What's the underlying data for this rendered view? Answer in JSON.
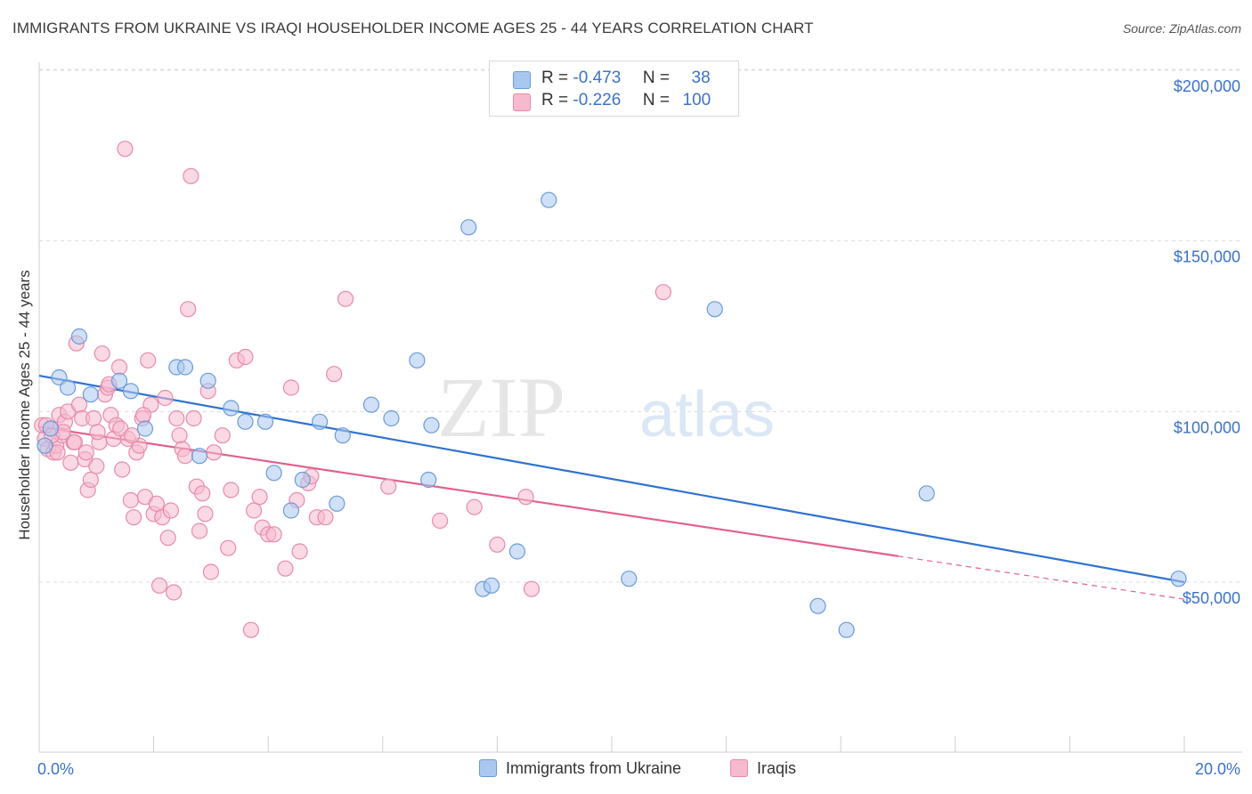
{
  "title": "IMMIGRANTS FROM UKRAINE VS IRAQI HOUSEHOLDER INCOME AGES 25 - 44 YEARS CORRELATION CHART",
  "source": "Source: ZipAtlas.com",
  "watermark": {
    "zip": "ZIP",
    "atlas": "atlas"
  },
  "legend": {
    "r_label": "R =",
    "n_label": "N =",
    "rows": [
      {
        "r": "-0.473",
        "n": "38",
        "color": "#a9c8f0",
        "border": "#6a9ad8"
      },
      {
        "r": "-0.226",
        "n": "100",
        "color": "#f7b9cd",
        "border": "#e68aa9"
      }
    ]
  },
  "bottom_legend": [
    "Immigrants from Ukraine",
    "Iraqis"
  ],
  "chart_data": {
    "type": "scatter",
    "title": "IMMIGRANTS FROM UKRAINE VS IRAQI HOUSEHOLDER INCOME AGES 25 - 44 YEARS CORRELATION CHART",
    "xlabel": "",
    "ylabel": "Householder Income Ages 25 - 44 years",
    "xlim": [
      0,
      20
    ],
    "ylim": [
      0,
      210000
    ],
    "x_tick_labels": [
      "0.0%",
      "20.0%"
    ],
    "y_ticks": [
      50000,
      100000,
      150000,
      200000
    ],
    "y_tick_labels": [
      "$50,000",
      "$100,000",
      "$150,000",
      "$200,000"
    ],
    "grid": true,
    "series": [
      {
        "name": "Immigrants from Ukraine",
        "color": "#6a9ad8",
        "fill": "#a9c8f0",
        "line_color": "#2f72d0",
        "trend": {
          "x0": 0,
          "y0": 110500,
          "x1": 20,
          "y1": 50000,
          "solid_until": 20
        },
        "points": [
          [
            0.1,
            90000
          ],
          [
            0.2,
            95000
          ],
          [
            0.35,
            110000
          ],
          [
            0.7,
            122000
          ],
          [
            0.5,
            107000
          ],
          [
            0.9,
            105000
          ],
          [
            1.4,
            109000
          ],
          [
            1.85,
            95000
          ],
          [
            2.4,
            113000
          ],
          [
            1.6,
            106000
          ],
          [
            2.95,
            109000
          ],
          [
            2.8,
            87000
          ],
          [
            3.35,
            101000
          ],
          [
            3.6,
            97000
          ],
          [
            3.95,
            97000
          ],
          [
            4.1,
            82000
          ],
          [
            4.4,
            71000
          ],
          [
            4.6,
            80000
          ],
          [
            4.9,
            97000
          ],
          [
            5.2,
            73000
          ],
          [
            5.3,
            93000
          ],
          [
            5.8,
            102000
          ],
          [
            6.15,
            98000
          ],
          [
            6.6,
            115000
          ],
          [
            6.85,
            96000
          ],
          [
            6.8,
            80000
          ],
          [
            7.5,
            154000
          ],
          [
            7.75,
            48000
          ],
          [
            7.9,
            49000
          ],
          [
            8.35,
            59000
          ],
          [
            8.9,
            162000
          ],
          [
            10.3,
            51000
          ],
          [
            11.8,
            130000
          ],
          [
            13.6,
            43000
          ],
          [
            14.1,
            36000
          ],
          [
            15.5,
            76000
          ],
          [
            19.9,
            51000
          ],
          [
            2.55,
            113000
          ]
        ]
      },
      {
        "name": "Iraqis",
        "color": "#e68aa9",
        "fill": "#f7b9cd",
        "line_color": "#e0608e",
        "trend": {
          "x0": 0,
          "y0": 95500,
          "x1": 20,
          "y1": 45000,
          "solid_until": 15
        },
        "points": [
          [
            0.05,
            96000
          ],
          [
            0.1,
            92000
          ],
          [
            0.15,
            89000
          ],
          [
            0.2,
            95000
          ],
          [
            0.25,
            88000
          ],
          [
            0.3,
            90000
          ],
          [
            0.35,
            99000
          ],
          [
            0.4,
            93000
          ],
          [
            0.45,
            97000
          ],
          [
            0.5,
            100000
          ],
          [
            0.55,
            85000
          ],
          [
            0.6,
            91000
          ],
          [
            0.65,
            120000
          ],
          [
            0.7,
            102000
          ],
          [
            0.75,
            98000
          ],
          [
            0.8,
            86000
          ],
          [
            0.85,
            77000
          ],
          [
            0.9,
            80000
          ],
          [
            0.95,
            98000
          ],
          [
            1.0,
            84000
          ],
          [
            1.05,
            91000
          ],
          [
            1.1,
            117000
          ],
          [
            1.15,
            105000
          ],
          [
            1.2,
            107000
          ],
          [
            1.25,
            99000
          ],
          [
            1.3,
            92000
          ],
          [
            1.35,
            96000
          ],
          [
            1.4,
            113000
          ],
          [
            1.45,
            83000
          ],
          [
            1.5,
            177000
          ],
          [
            1.55,
            92000
          ],
          [
            1.6,
            74000
          ],
          [
            1.65,
            69000
          ],
          [
            1.7,
            88000
          ],
          [
            1.75,
            90000
          ],
          [
            1.8,
            98000
          ],
          [
            1.85,
            75000
          ],
          [
            1.9,
            115000
          ],
          [
            1.95,
            102000
          ],
          [
            2.0,
            70000
          ],
          [
            2.05,
            73000
          ],
          [
            2.1,
            49000
          ],
          [
            2.15,
            69000
          ],
          [
            2.2,
            104000
          ],
          [
            2.25,
            63000
          ],
          [
            2.3,
            71000
          ],
          [
            2.35,
            47000
          ],
          [
            2.4,
            98000
          ],
          [
            2.45,
            93000
          ],
          [
            2.5,
            89000
          ],
          [
            2.55,
            87000
          ],
          [
            2.6,
            130000
          ],
          [
            2.65,
            169000
          ],
          [
            2.7,
            98000
          ],
          [
            2.75,
            78000
          ],
          [
            2.8,
            65000
          ],
          [
            2.85,
            76000
          ],
          [
            2.9,
            70000
          ],
          [
            2.95,
            106000
          ],
          [
            3.0,
            53000
          ],
          [
            3.05,
            88000
          ],
          [
            3.2,
            93000
          ],
          [
            3.3,
            60000
          ],
          [
            3.35,
            77000
          ],
          [
            3.45,
            115000
          ],
          [
            3.6,
            116000
          ],
          [
            3.7,
            36000
          ],
          [
            3.75,
            71000
          ],
          [
            3.85,
            75000
          ],
          [
            3.9,
            66000
          ],
          [
            4.0,
            64000
          ],
          [
            4.1,
            64000
          ],
          [
            4.3,
            54000
          ],
          [
            4.4,
            107000
          ],
          [
            4.5,
            74000
          ],
          [
            4.55,
            59000
          ],
          [
            4.7,
            79000
          ],
          [
            4.75,
            81000
          ],
          [
            4.85,
            69000
          ],
          [
            5.0,
            69000
          ],
          [
            5.15,
            111000
          ],
          [
            5.35,
            133000
          ],
          [
            6.1,
            78000
          ],
          [
            7.0,
            68000
          ],
          [
            7.6,
            72000
          ],
          [
            8.0,
            61000
          ],
          [
            8.5,
            75000
          ],
          [
            8.6,
            48000
          ],
          [
            10.9,
            135000
          ],
          [
            0.12,
            96000
          ],
          [
            0.22,
            93000
          ],
          [
            0.32,
            88000
          ],
          [
            0.42,
            94000
          ],
          [
            0.62,
            91000
          ],
          [
            0.82,
            88000
          ],
          [
            1.02,
            94000
          ],
          [
            1.22,
            108000
          ],
          [
            1.42,
            95000
          ],
          [
            1.62,
            93000
          ],
          [
            1.82,
            99000
          ]
        ]
      }
    ]
  }
}
